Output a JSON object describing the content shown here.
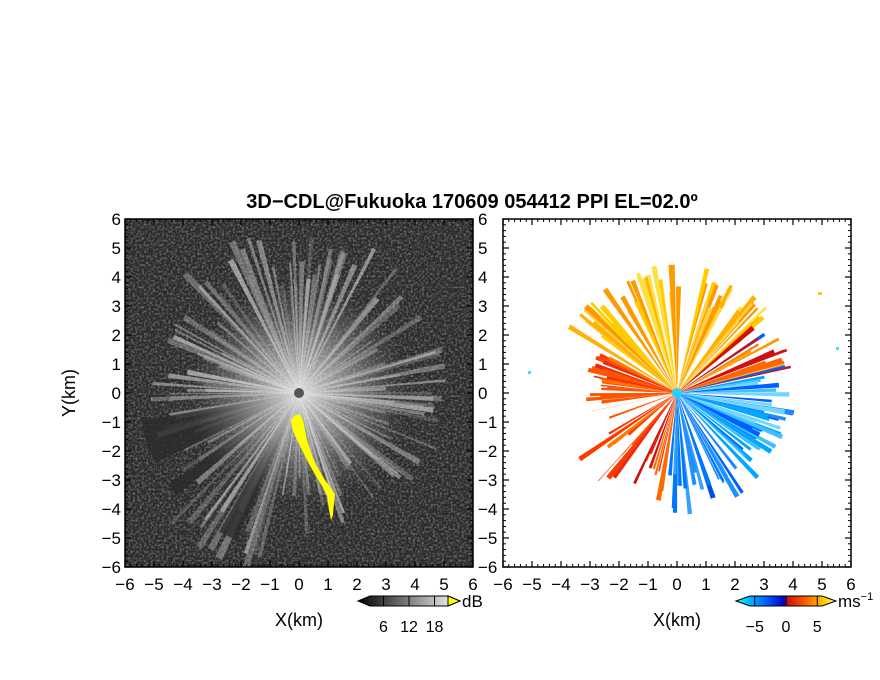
{
  "chart_data": {
    "type": "heatmap",
    "title": "3D−CDL@Fukuoka 170609 054412 PPI EL=02.0º",
    "panels": [
      {
        "name": "intensity",
        "xlabel": "X(km)",
        "ylabel": "Y(km)",
        "xlim": [
          -6,
          6
        ],
        "ylim": [
          -6,
          6
        ],
        "xticks": [
          "−6",
          "−5",
          "−4",
          "−3",
          "−2",
          "−1",
          "0",
          "1",
          "2",
          "3",
          "4",
          "5",
          "6"
        ],
        "yticks": [
          "−6",
          "−5",
          "−4",
          "−3",
          "−2",
          "−1",
          "0",
          "1",
          "2",
          "3",
          "4",
          "5",
          "6"
        ],
        "colorbar": {
          "ticks": [
            "6",
            "12",
            "18"
          ],
          "values": [
            6,
            12,
            18
          ],
          "range": [
            0,
            24
          ],
          "unit": "dB",
          "colors": [
            "#000000",
            "#ffffff"
          ]
        },
        "highlight_color": "#ffff00"
      },
      {
        "name": "velocity",
        "xlabel": "X(km)",
        "ylabel": "",
        "xlim": [
          -6,
          6
        ],
        "ylim": [
          -6,
          6
        ],
        "xticks": [
          "−6",
          "−5",
          "−4",
          "−3",
          "−2",
          "−1",
          "0",
          "1",
          "2",
          "3",
          "4",
          "5",
          "6"
        ],
        "yticks": [],
        "colorbar": {
          "ticks": [
            "−5",
            "0",
            "5"
          ],
          "values": [
            -5,
            0,
            5
          ],
          "range": [
            -8,
            8
          ],
          "unit": "ms",
          "unit_exp": "−1",
          "colors": [
            "#00ffff",
            "#0060ff",
            "#0000cc",
            "#d01010",
            "#ff6000",
            "#ffcc00",
            "#ffff66"
          ]
        }
      }
    ]
  }
}
